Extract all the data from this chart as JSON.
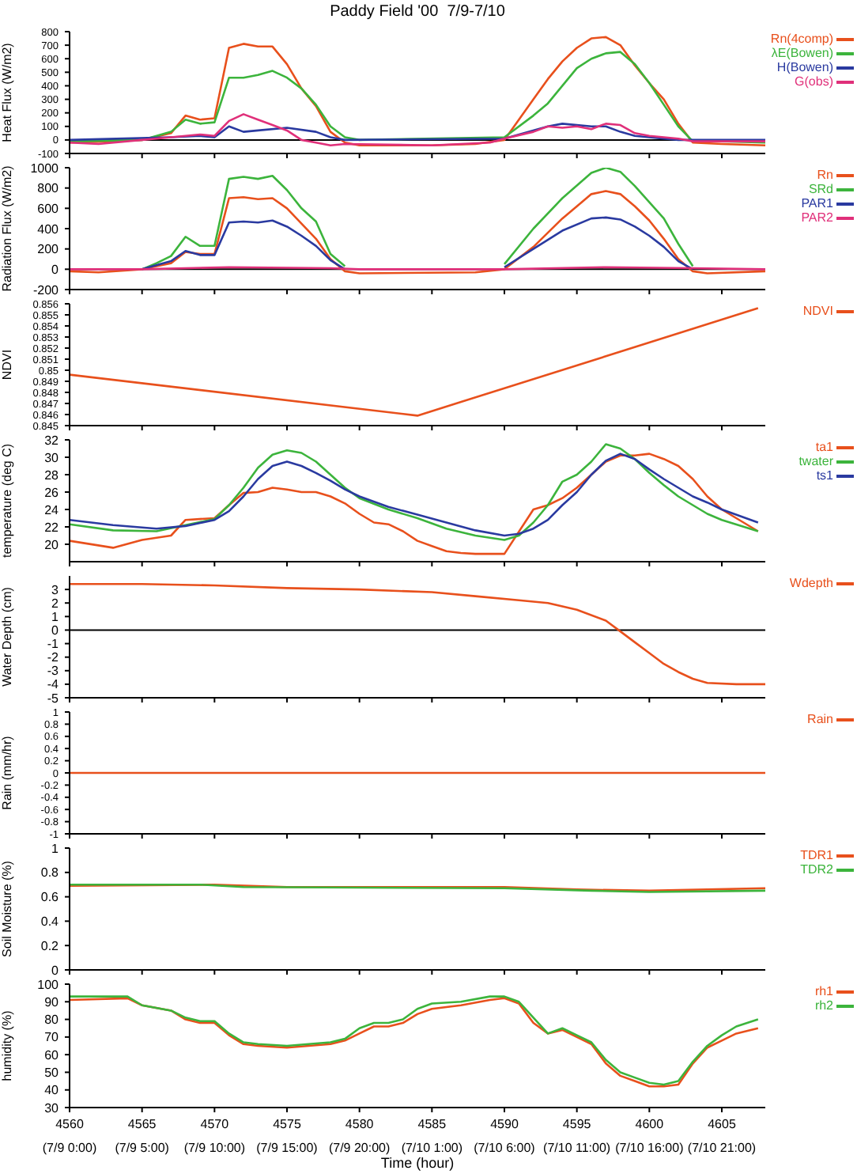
{
  "chart_data": [
    {
      "type": "line",
      "title": "Paddy Field '00  7/9-7/10",
      "ylabel": "Heat Flux (W/m2)",
      "xlim": [
        4560,
        4608
      ],
      "xticks": [
        4560,
        4565,
        4570,
        4575,
        4580,
        4585,
        4590,
        4595,
        4600,
        4605
      ],
      "ylim": [
        -100,
        800
      ],
      "yticks": [
        -100,
        0,
        100,
        200,
        300,
        400,
        500,
        600,
        700,
        800
      ],
      "tick_labels": "y",
      "legend": "top right",
      "ref_lines": [
        {
          "axis": "y",
          "value": 0,
          "color": "#000000"
        }
      ],
      "series": [
        {
          "name": "Rn(4comp)",
          "color": "#e8501c",
          "x": [
            4560,
            4563,
            4565,
            4567,
            4568,
            4569,
            4570,
            4571,
            4572,
            4573,
            4574,
            4575,
            4576,
            4577,
            4578,
            4579,
            4580,
            4585,
            4588,
            4590,
            4591,
            4592,
            4593,
            4594,
            4595,
            4596,
            4597,
            4598,
            4599,
            4600,
            4601,
            4602,
            4603,
            4605,
            4608
          ],
          "values": [
            -20,
            -10,
            0,
            50,
            180,
            150,
            160,
            680,
            710,
            690,
            690,
            560,
            380,
            250,
            60,
            -20,
            -40,
            -40,
            -30,
            0,
            150,
            300,
            450,
            580,
            680,
            750,
            760,
            700,
            550,
            420,
            300,
            120,
            -20,
            -30,
            -40
          ]
        },
        {
          "name": "λE(Bowen)",
          "color": "#3cb43c",
          "x": [
            4560,
            4565,
            4566,
            4567,
            4568,
            4569,
            4570,
            4571,
            4572,
            4573,
            4574,
            4575,
            4576,
            4577,
            4578,
            4579,
            4580,
            4590,
            4592,
            4593,
            4594,
            4595,
            4596,
            4597,
            4598,
            4599,
            4600,
            4601,
            4602,
            4603,
            4605,
            4608
          ],
          "values": [
            -10,
            0,
            30,
            60,
            150,
            120,
            130,
            460,
            460,
            480,
            510,
            460,
            380,
            260,
            100,
            20,
            0,
            20,
            180,
            270,
            400,
            530,
            600,
            640,
            650,
            560,
            420,
            260,
            100,
            -10,
            -10,
            -20
          ]
        },
        {
          "name": "H(Bowen)",
          "color": "#2a3aa0",
          "x": [
            4560,
            4567,
            4569,
            4570,
            4571,
            4572,
            4573,
            4575,
            4577,
            4578,
            4579,
            4590,
            4593,
            4594,
            4596,
            4597,
            4598,
            4599,
            4600,
            4602,
            4608
          ],
          "values": [
            0,
            20,
            30,
            20,
            100,
            60,
            70,
            90,
            60,
            20,
            0,
            10,
            100,
            120,
            100,
            100,
            60,
            30,
            20,
            0,
            0
          ]
        },
        {
          "name": "G(obs)",
          "color": "#e0307a",
          "x": [
            4560,
            4562,
            4565,
            4567,
            4568,
            4569,
            4570,
            4571,
            4572,
            4573,
            4574,
            4575,
            4576,
            4577,
            4578,
            4579,
            4585,
            4589,
            4590,
            4592,
            4593,
            4594,
            4595,
            4596,
            4597,
            4598,
            4599,
            4600,
            4602,
            4603,
            4608
          ],
          "values": [
            -20,
            -30,
            0,
            20,
            30,
            40,
            30,
            140,
            190,
            150,
            110,
            70,
            0,
            -20,
            -40,
            -30,
            -40,
            -20,
            10,
            60,
            100,
            90,
            100,
            80,
            120,
            110,
            50,
            30,
            10,
            -10,
            -10
          ]
        }
      ]
    },
    {
      "type": "line",
      "ylabel": "Radiation Flux (W/m2)",
      "xlim": [
        4560,
        4608
      ],
      "xticks": [
        4560,
        4565,
        4570,
        4575,
        4580,
        4585,
        4590,
        4595,
        4600,
        4605
      ],
      "ylim": [
        -200,
        1000
      ],
      "yticks": [
        -200,
        0,
        200,
        400,
        600,
        800,
        1000
      ],
      "tick_labels": "y",
      "legend": "top right",
      "ref_lines": [
        {
          "axis": "y",
          "value": 0,
          "color": "#000000"
        }
      ],
      "series": [
        {
          "name": "Rn",
          "color": "#e8501c",
          "x": [
            4560,
            4562,
            4565,
            4567,
            4568,
            4569,
            4570,
            4571,
            4572,
            4573,
            4574,
            4575,
            4576,
            4577,
            4578,
            4579,
            4580,
            4588,
            4590,
            4592,
            4594,
            4596,
            4597,
            4598,
            4599,
            4600,
            4601,
            4602,
            4603,
            4604,
            4608
          ],
          "values": [
            -20,
            -30,
            0,
            60,
            170,
            150,
            150,
            700,
            710,
            690,
            700,
            600,
            450,
            300,
            100,
            -20,
            -40,
            -30,
            0,
            220,
            500,
            740,
            770,
            740,
            620,
            480,
            300,
            100,
            -20,
            -40,
            -20
          ]
        },
        {
          "name": "SRd",
          "color": "#3cb43c",
          "x": [
            4565,
            4566,
            4567,
            4568,
            4569,
            4570,
            4571,
            4572,
            4573,
            4574,
            4575,
            4576,
            4577,
            4578,
            4579,
            4585,
            4590,
            4592,
            4594,
            4596,
            4597,
            4598,
            4599,
            4600,
            4601,
            4602,
            4603
          ],
          "values": [
            0,
            60,
            130,
            320,
            230,
            230,
            890,
            910,
            890,
            920,
            780,
            600,
            470,
            150,
            30,
            null,
            50,
            400,
            700,
            950,
            1000,
            960,
            820,
            660,
            500,
            250,
            30
          ]
        },
        {
          "name": "PAR1",
          "color": "#2a3aa0",
          "x": [
            4565,
            4567,
            4568,
            4569,
            4570,
            4571,
            4572,
            4573,
            4574,
            4575,
            4576,
            4577,
            4578,
            4579,
            4585,
            4590,
            4592,
            4594,
            4596,
            4597,
            4598,
            4599,
            4600,
            4601,
            4602,
            4603
          ],
          "values": [
            0,
            80,
            180,
            140,
            140,
            460,
            470,
            460,
            480,
            420,
            330,
            230,
            90,
            0,
            null,
            20,
            200,
            380,
            500,
            510,
            490,
            420,
            330,
            220,
            80,
            0
          ]
        },
        {
          "name": "PAR2",
          "color": "#e0307a",
          "x": [
            4560,
            4565,
            4571,
            4578,
            4580,
            4590,
            4597,
            4603,
            4608
          ],
          "values": [
            0,
            0,
            20,
            10,
            0,
            0,
            20,
            10,
            0
          ]
        }
      ]
    },
    {
      "type": "line",
      "ylabel": "NDVI",
      "xlim": [
        4560,
        4608
      ],
      "xticks": [
        4560,
        4565,
        4570,
        4575,
        4580,
        4585,
        4590,
        4595,
        4600,
        4605
      ],
      "ylim": [
        0.845,
        0.856
      ],
      "yticks": [
        0.845,
        0.846,
        0.847,
        0.848,
        0.849,
        0.85,
        0.851,
        0.852,
        0.853,
        0.854,
        0.855,
        0.856
      ],
      "tick_labels": "y",
      "legend": "top right",
      "series": [
        {
          "name": "NDVI",
          "color": "#e8501c",
          "x": [
            4560,
            4584,
            4607.5
          ],
          "values": [
            0.8496,
            0.8459,
            0.8556
          ]
        }
      ]
    },
    {
      "type": "line",
      "ylabel": "temperature (deg C)",
      "xlim": [
        4560,
        4608
      ],
      "xticks": [
        4560,
        4565,
        4570,
        4575,
        4580,
        4585,
        4590,
        4595,
        4600,
        4605
      ],
      "ylim": [
        18,
        32
      ],
      "yticks": [
        20,
        22,
        24,
        26,
        28,
        30,
        32
      ],
      "tick_labels": "y",
      "legend": "top right",
      "series": [
        {
          "name": "ta1",
          "color": "#e8501c",
          "x": [
            4560,
            4563,
            4565,
            4567,
            4568,
            4570,
            4571,
            4572,
            4573,
            4574,
            4575,
            4576,
            4577,
            4578,
            4579,
            4580,
            4581,
            4582,
            4583,
            4584,
            4585,
            4586,
            4587,
            4588,
            4590,
            4592,
            4593,
            4594,
            4595,
            4596,
            4597,
            4598,
            4599,
            4600,
            4601,
            4602,
            4603,
            4604,
            4605,
            4606,
            4607.5
          ],
          "values": [
            20.4,
            19.6,
            20.5,
            21,
            22.8,
            23,
            24.5,
            25.9,
            26,
            26.5,
            26.3,
            26,
            26,
            25.5,
            24.7,
            23.5,
            22.5,
            22.3,
            21.5,
            20.4,
            19.8,
            19.2,
            19,
            18.9,
            18.9,
            24,
            24.5,
            25.3,
            26.5,
            28,
            29.5,
            30.2,
            30.2,
            30.4,
            29.8,
            29,
            27.5,
            25.5,
            24,
            23,
            21.5
          ]
        },
        {
          "name": "twater",
          "color": "#3cb43c",
          "x": [
            4560,
            4563,
            4566,
            4568,
            4570,
            4571,
            4572,
            4573,
            4574,
            4575,
            4576,
            4577,
            4578,
            4579,
            4580,
            4582,
            4584,
            4586,
            4588,
            4590,
            4591,
            4592,
            4593,
            4594,
            4595,
            4596,
            4597,
            4598,
            4599,
            4600,
            4601,
            4602,
            4603,
            4604,
            4605,
            4607.5
          ],
          "values": [
            22.3,
            21.6,
            21.5,
            22.2,
            22.9,
            24.5,
            26.5,
            28.8,
            30.3,
            30.8,
            30.5,
            29.5,
            28,
            26.5,
            25.3,
            24,
            23,
            21.8,
            21,
            20.5,
            21,
            22.5,
            24.5,
            27.2,
            28,
            29.5,
            31.5,
            31,
            29.8,
            28.2,
            26.8,
            25.5,
            24.5,
            23.5,
            22.8,
            21.5
          ]
        },
        {
          "name": "ts1",
          "color": "#2a3aa0",
          "x": [
            4560,
            4563,
            4566,
            4568,
            4570,
            4571,
            4572,
            4573,
            4574,
            4575,
            4576,
            4577,
            4578,
            4579,
            4580,
            4582,
            4584,
            4586,
            4588,
            4590,
            4591,
            4592,
            4593,
            4594,
            4595,
            4596,
            4597,
            4598,
            4599,
            4600,
            4601,
            4602,
            4603,
            4604,
            4605,
            4607.5
          ],
          "values": [
            22.8,
            22.2,
            21.8,
            22.1,
            22.8,
            23.8,
            25.5,
            27.5,
            29,
            29.5,
            29,
            28.2,
            27.3,
            26.3,
            25.5,
            24.3,
            23.4,
            22.5,
            21.6,
            21,
            21.2,
            21.8,
            22.8,
            24.5,
            26,
            28,
            29.6,
            30.4,
            29.8,
            28.6,
            27.5,
            26.5,
            25.5,
            24.8,
            24,
            22.5
          ]
        }
      ]
    },
    {
      "type": "line",
      "ylabel": "Water Depth (cm)",
      "xlim": [
        4560,
        4608
      ],
      "xticks": [
        4560,
        4565,
        4570,
        4575,
        4580,
        4585,
        4590,
        4595,
        4600,
        4605
      ],
      "ylim": [
        -5,
        4
      ],
      "yticks": [
        -5,
        -4,
        -3,
        -2,
        -1,
        0,
        1,
        2,
        3
      ],
      "tick_labels": "y",
      "legend": "top right",
      "ref_lines": [
        {
          "axis": "y",
          "value": 0,
          "color": "#000000"
        }
      ],
      "series": [
        {
          "name": "Wdepth",
          "color": "#e8501c",
          "x": [
            4560,
            4565,
            4570,
            4575,
            4580,
            4585,
            4588,
            4591,
            4593,
            4595,
            4597,
            4598,
            4599,
            4600,
            4601,
            4602,
            4603,
            4604,
            4606,
            4608
          ],
          "values": [
            3.4,
            3.4,
            3.3,
            3.1,
            3,
            2.8,
            2.5,
            2.2,
            2,
            1.5,
            0.7,
            -0.1,
            -0.9,
            -1.7,
            -2.5,
            -3.1,
            -3.6,
            -3.9,
            -4,
            -4
          ]
        }
      ]
    },
    {
      "type": "line",
      "ylabel": "Rain (mm/hr)",
      "xlim": [
        4560,
        4608
      ],
      "xticks": [
        4560,
        4565,
        4570,
        4575,
        4580,
        4585,
        4590,
        4595,
        4600,
        4605
      ],
      "ylim": [
        -1,
        1
      ],
      "yticks": [
        -1,
        -0.8,
        -0.6,
        -0.4,
        -0.2,
        0,
        0.2,
        0.4,
        0.6,
        0.8,
        1
      ],
      "tick_labels": "y",
      "legend": "top right",
      "series": [
        {
          "name": "Rain",
          "color": "#e8501c",
          "x": [
            4560,
            4608
          ],
          "values": [
            0,
            0
          ]
        }
      ]
    },
    {
      "type": "line",
      "ylabel": "Soil Moisture (%)",
      "xlim": [
        4560,
        4608
      ],
      "xticks": [
        4560,
        4565,
        4570,
        4575,
        4580,
        4585,
        4590,
        4595,
        4600,
        4605
      ],
      "ylim": [
        0,
        1
      ],
      "yticks": [
        0,
        0.2,
        0.4,
        0.6,
        0.8,
        1
      ],
      "tick_labels": "y",
      "legend": "top right",
      "series": [
        {
          "name": "TDR1",
          "color": "#e8501c",
          "x": [
            4560,
            4570,
            4575,
            4590,
            4595,
            4600,
            4608
          ],
          "values": [
            0.69,
            0.7,
            0.68,
            0.68,
            0.66,
            0.65,
            0.67
          ]
        },
        {
          "name": "TDR2",
          "color": "#3cb43c",
          "x": [
            4560,
            4569,
            4572,
            4590,
            4596,
            4600,
            4608
          ],
          "values": [
            0.7,
            0.7,
            0.68,
            0.67,
            0.65,
            0.64,
            0.65
          ]
        }
      ]
    },
    {
      "type": "line",
      "ylabel": "humidity (%)",
      "xlabel": "Time (hour)",
      "xlim": [
        4560,
        4608
      ],
      "xticks": [
        4560,
        4565,
        4570,
        4575,
        4580,
        4585,
        4590,
        4595,
        4600,
        4605
      ],
      "annotations": [
        "(7/9 0:00)",
        "(7/9 5:00)",
        "(7/9 10:00)",
        "(7/9 15:00)",
        "(7/9 20:00)",
        "(7/10 1:00)",
        "(7/10 6:00)",
        "(7/10 11:00)",
        "(7/10 16:00)",
        "(7/10 21:00)"
      ],
      "ylim": [
        30,
        100
      ],
      "yticks": [
        30,
        40,
        50,
        60,
        70,
        80,
        90,
        100
      ],
      "legend": "top right",
      "series": [
        {
          "name": "rh1",
          "color": "#e8501c",
          "x": [
            4560,
            4564,
            4565,
            4567,
            4568,
            4569,
            4570,
            4571,
            4572,
            4573,
            4575,
            4578,
            4579,
            4580,
            4581,
            4582,
            4583,
            4584,
            4585,
            4587,
            4589,
            4590,
            4591,
            4592,
            4593,
            4594,
            4595,
            4596,
            4597,
            4598,
            4599,
            4600,
            4601,
            4602,
            4603,
            4604,
            4605,
            4606,
            4607.5
          ],
          "values": [
            91,
            92,
            88,
            85,
            80,
            78,
            78,
            71,
            66,
            65,
            64,
            66,
            68,
            72,
            76,
            76,
            78,
            83,
            86,
            88,
            91,
            92,
            89,
            78,
            72,
            74,
            70,
            66,
            55,
            48,
            45,
            42,
            42,
            43,
            55,
            64,
            68,
            72,
            75
          ]
        },
        {
          "name": "rh2",
          "color": "#3cb43c",
          "x": [
            4560,
            4564,
            4565,
            4567,
            4568,
            4569,
            4570,
            4571,
            4572,
            4573,
            4575,
            4578,
            4579,
            4580,
            4581,
            4582,
            4583,
            4584,
            4585,
            4587,
            4589,
            4590,
            4591,
            4592,
            4593,
            4594,
            4595,
            4596,
            4597,
            4598,
            4599,
            4600,
            4601,
            4602,
            4603,
            4604,
            4605,
            4606,
            4607.5
          ],
          "values": [
            93,
            93,
            88,
            85,
            81,
            79,
            79,
            72,
            67,
            66,
            65,
            67,
            69,
            75,
            78,
            78,
            80,
            86,
            89,
            90,
            93,
            93,
            90,
            81,
            72,
            75,
            71,
            67,
            57,
            50,
            47,
            44,
            43,
            45,
            56,
            65,
            71,
            76,
            80
          ]
        }
      ]
    }
  ]
}
